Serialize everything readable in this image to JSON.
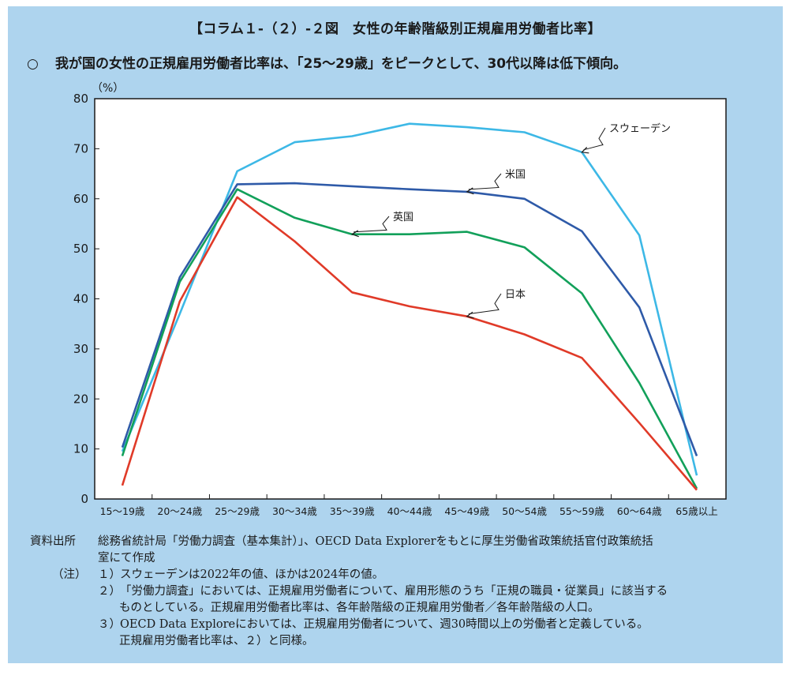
{
  "header": {
    "title": "【コラム１-（２）-２図　女性の年齢階級別正規雇用労働者比率】",
    "bullet": "○",
    "summary": "我が国の女性の正規雇用労働者比率は、「25～29歳」をピークとして、30代以降は低下傾向。"
  },
  "chart_data": {
    "type": "line",
    "title": "",
    "xlabel": "",
    "ylabel": "（%）",
    "ylim": [
      0,
      80
    ],
    "yticks": [
      0,
      10,
      20,
      30,
      40,
      50,
      60,
      70,
      80
    ],
    "grid": false,
    "categories": [
      "15～19歳",
      "20～24歳",
      "25～29歳",
      "30～34歳",
      "35～39歳",
      "40～44歳",
      "45～49歳",
      "50～54歳",
      "55～59歳",
      "60～64歳",
      "65歳以上"
    ],
    "series": [
      {
        "name": "スウェーデン",
        "color": "#3db8e6",
        "values": [
          9.5,
          37.0,
          65.5,
          71.3,
          72.5,
          75.0,
          74.3,
          73.3,
          69.3,
          52.7,
          4.7
        ]
      },
      {
        "name": "米国",
        "color": "#2e5aa8",
        "values": [
          10.3,
          44.3,
          62.9,
          63.1,
          62.5,
          61.9,
          61.4,
          60.0,
          53.5,
          38.3,
          8.6
        ]
      },
      {
        "name": "英国",
        "color": "#12a05a",
        "values": [
          8.6,
          43.4,
          61.9,
          56.2,
          52.9,
          52.9,
          53.4,
          50.3,
          41.1,
          23.2,
          2.1
        ]
      },
      {
        "name": "日本",
        "color": "#e03a28",
        "values": [
          2.7,
          39.5,
          60.3,
          51.5,
          41.3,
          38.5,
          36.5,
          32.9,
          28.2,
          15.2,
          1.8
        ]
      }
    ]
  },
  "footer": {
    "source_label": "資料出所",
    "source_line1": "総務省統計局「労働力調査（基本集計）」、OECD Data Explorerをもとに厚生労働省政策統括官付政策統括",
    "source_line2": "室にて作成",
    "notes_label": "（注）",
    "note1_num": "１）",
    "note1": "スウェーデンは2022年の値、ほかは2024年の値。",
    "note2_num": "２）",
    "note2_line1": "「労働力調査」においては、正規雇用労働者について、雇用形態のうち「正規の職員・従業員」に該当する",
    "note2_line2": "ものとしている。正規雇用労働者比率は、各年齢階級の正規雇用労働者／各年齢階級の人口。",
    "note3_num": "３）",
    "note3_line1": "OECD Data Exploreにおいては、正規雇用労働者について、週30時間以上の労働者と定義している。",
    "note3_line2": "正規雇用労働者比率は、２）と同様。"
  }
}
